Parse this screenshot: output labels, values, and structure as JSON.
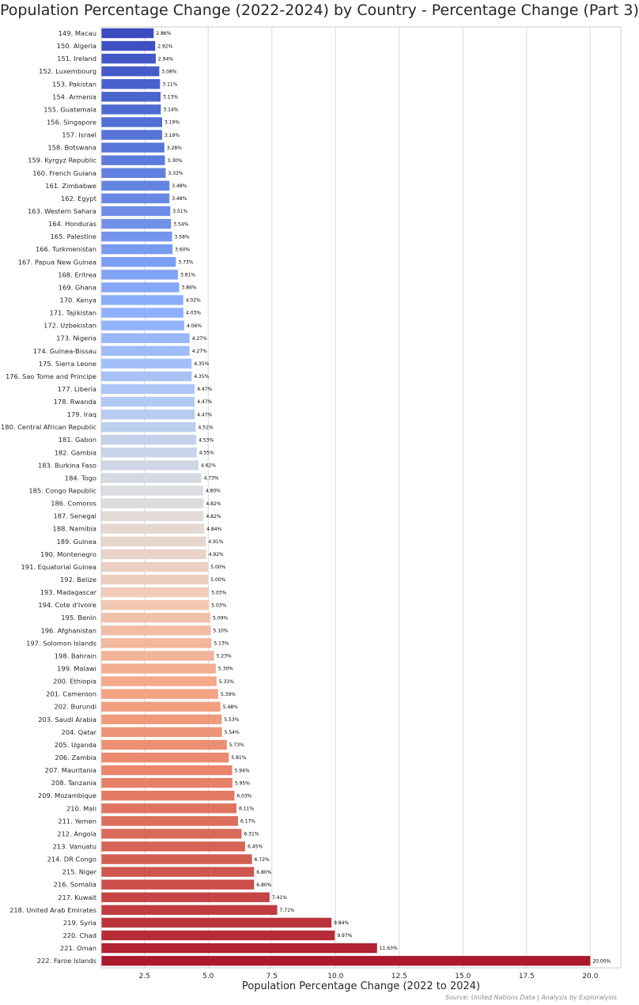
{
  "chart_data": {
    "type": "bar",
    "orientation": "horizontal",
    "title": "Population Percentage Change (2022-2024) by Country - Percentage Change (Part 3)",
    "xlabel": "Population Percentage Change (2022 to 2024)",
    "ylabel": "",
    "source": "Source: United Nations Data | Analysis by Exploralysis",
    "xlim": [
      0.8,
      21.2
    ],
    "xticks": [
      2.5,
      5.0,
      7.5,
      10.0,
      12.5,
      15.0,
      17.5,
      20.0
    ],
    "xtick_labels": [
      "2.5",
      "5.0",
      "7.5",
      "10.0",
      "12.5",
      "15.0",
      "17.5",
      "20.0"
    ],
    "grid": true,
    "colormap": "coolwarm",
    "categories": [
      "149. Macau",
      "150. Algeria",
      "151. Ireland",
      "152. Luxembourg",
      "153. Pakistan",
      "154. Armenia",
      "155. Guatemala",
      "156. Singapore",
      "157. Israel",
      "158. Botswana",
      "159. Kyrgyz Republic",
      "160. French Guiana",
      "161. Zimbabwe",
      "162. Egypt",
      "163. Western Sahara",
      "164. Honduras",
      "165. Palestine",
      "166. Turkmenistan",
      "167. Papua New Guinea",
      "168. Eritrea",
      "169. Ghana",
      "170. Kenya",
      "171. Tajikistan",
      "172. Uzbekistan",
      "173. Nigeria",
      "174. Guinea-Bissau",
      "175. Sierra Leone",
      "176. Sao Tome and Principe",
      "177. Liberia",
      "178. Rwanda",
      "179. Iraq",
      "180. Central African Republic",
      "181. Gabon",
      "182. Gambia",
      "183. Burkina Faso",
      "184. Togo",
      "185. Congo Republic",
      "186. Comoros",
      "187. Senegal",
      "188. Namibia",
      "189. Guinea",
      "190. Montenegro",
      "191. Equatorial Guinea",
      "192. Belize",
      "193. Madagascar",
      "194. Cote d'Ivoire",
      "195. Benin",
      "196. Afghanistan",
      "197. Solomon Islands",
      "198. Bahrain",
      "199. Malawi",
      "200. Ethiopia",
      "201. Cameroon",
      "202. Burundi",
      "203. Saudi Arabia",
      "204. Qatar",
      "205. Uganda",
      "206. Zambia",
      "207. Mauritania",
      "208. Tanzania",
      "209. Mozambique",
      "210. Mali",
      "211. Yemen",
      "212. Angola",
      "213. Vanuatu",
      "214. DR Congo",
      "215. Niger",
      "216. Somalia",
      "217. Kuwait",
      "218. United Arab Emirates",
      "219. Syria",
      "220. Chad",
      "221. Oman",
      "222. Faroe Islands"
    ],
    "values": [
      2.86,
      2.92,
      2.94,
      3.08,
      3.11,
      3.13,
      3.14,
      3.19,
      3.19,
      3.28,
      3.3,
      3.33,
      3.48,
      3.48,
      3.51,
      3.54,
      3.58,
      3.6,
      3.73,
      3.81,
      3.86,
      4.02,
      4.03,
      4.06,
      4.27,
      4.27,
      4.35,
      4.35,
      4.47,
      4.47,
      4.47,
      4.51,
      4.53,
      4.55,
      4.62,
      4.73,
      4.8,
      4.82,
      4.82,
      4.84,
      4.91,
      4.92,
      5.0,
      5.0,
      5.03,
      5.03,
      5.09,
      5.1,
      5.13,
      5.23,
      5.3,
      5.33,
      5.39,
      5.48,
      5.53,
      5.54,
      5.73,
      5.81,
      5.94,
      5.95,
      6.03,
      6.11,
      6.17,
      6.31,
      6.45,
      6.72,
      6.8,
      6.8,
      7.41,
      7.71,
      9.84,
      9.97,
      11.63,
      20.0
    ],
    "value_labels": [
      "2.86%",
      "2.92%",
      "2.94%",
      "3.08%",
      "3.11%",
      "3.13%",
      "3.14%",
      "3.19%",
      "3.19%",
      "3.28%",
      "3.30%",
      "3.33%",
      "3.48%",
      "3.48%",
      "3.51%",
      "3.54%",
      "3.58%",
      "3.60%",
      "3.73%",
      "3.81%",
      "3.86%",
      "4.02%",
      "4.03%",
      "4.06%",
      "4.27%",
      "4.27%",
      "4.35%",
      "4.35%",
      "4.47%",
      "4.47%",
      "4.47%",
      "4.51%",
      "4.53%",
      "4.55%",
      "4.62%",
      "4.73%",
      "4.80%",
      "4.82%",
      "4.82%",
      "4.84%",
      "4.91%",
      "4.92%",
      "5.00%",
      "5.00%",
      "5.03%",
      "5.03%",
      "5.09%",
      "5.10%",
      "5.13%",
      "5.23%",
      "5.30%",
      "5.33%",
      "5.39%",
      "5.48%",
      "5.53%",
      "5.54%",
      "5.73%",
      "5.81%",
      "5.94%",
      "5.95%",
      "6.03%",
      "6.11%",
      "6.17%",
      "6.31%",
      "6.45%",
      "6.72%",
      "6.80%",
      "6.80%",
      "7.41%",
      "7.71%",
      "9.84%",
      "9.97%",
      "11.63%",
      "20.00%"
    ]
  }
}
